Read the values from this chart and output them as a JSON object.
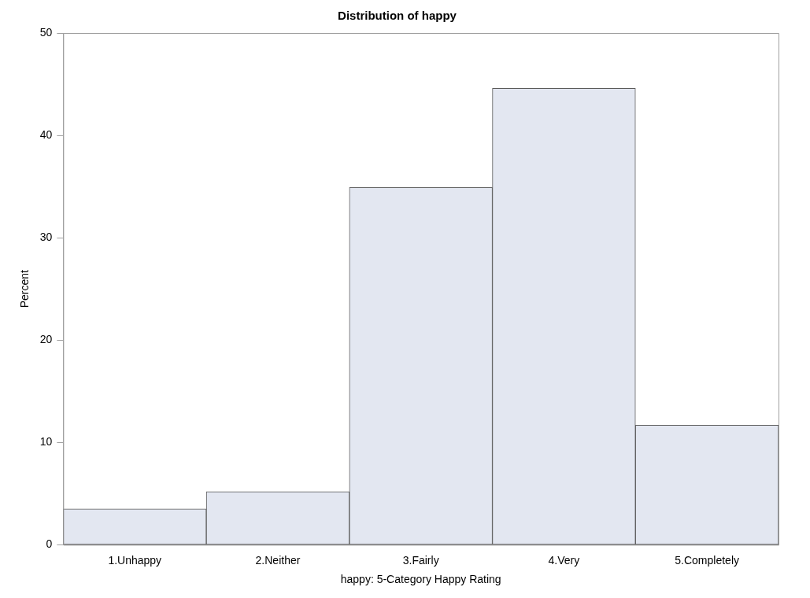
{
  "chart_data": {
    "type": "bar",
    "title": "Distribution of happy",
    "xlabel": "happy: 5-Category Happy Rating",
    "ylabel": "Percent",
    "categories": [
      "1.Unhappy",
      "2.Neither",
      "3.Fairly",
      "4.Very",
      "5.Completely"
    ],
    "values": [
      3.5,
      5.2,
      34.9,
      44.6,
      11.7
    ],
    "color": "#e3e7f1",
    "ylim": [
      0,
      50
    ],
    "yticks": [
      0,
      10,
      20,
      30,
      40,
      50
    ],
    "grid": false,
    "legend": false
  }
}
